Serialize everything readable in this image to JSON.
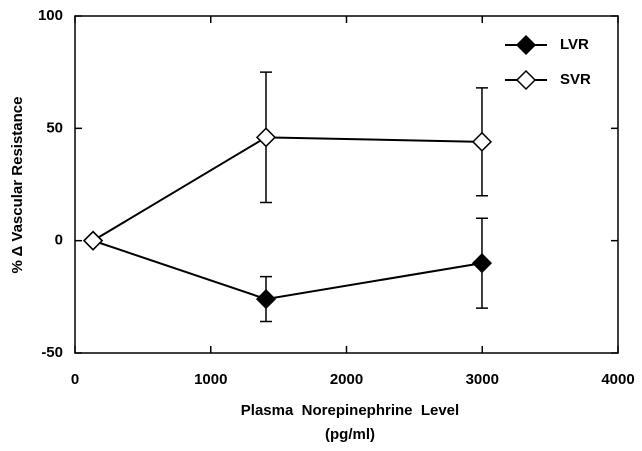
{
  "chart_data": {
    "type": "line",
    "xlabel": [
      "Plasma  Norepinephrine  Level",
      "(pg/ml)"
    ],
    "ylabel": "% Δ Vascular Resistance",
    "x": [
      133,
      1407,
      2998
    ],
    "series": [
      {
        "name": "LVR",
        "color": "#000000",
        "filled": true,
        "values": [
          0,
          -26,
          -10
        ],
        "errors": [
          null,
          10,
          20
        ]
      },
      {
        "name": "SVR",
        "color": "#000000",
        "filled": false,
        "values": [
          0,
          46,
          44
        ],
        "errors": [
          null,
          29,
          24
        ]
      }
    ],
    "xlim": [
      0,
      4000
    ],
    "xticks": [
      0,
      1000,
      2000,
      3000,
      4000
    ],
    "ylim": [
      -50,
      100
    ],
    "yticks": [
      -50,
      0,
      50,
      100
    ],
    "legend": "top-right"
  }
}
